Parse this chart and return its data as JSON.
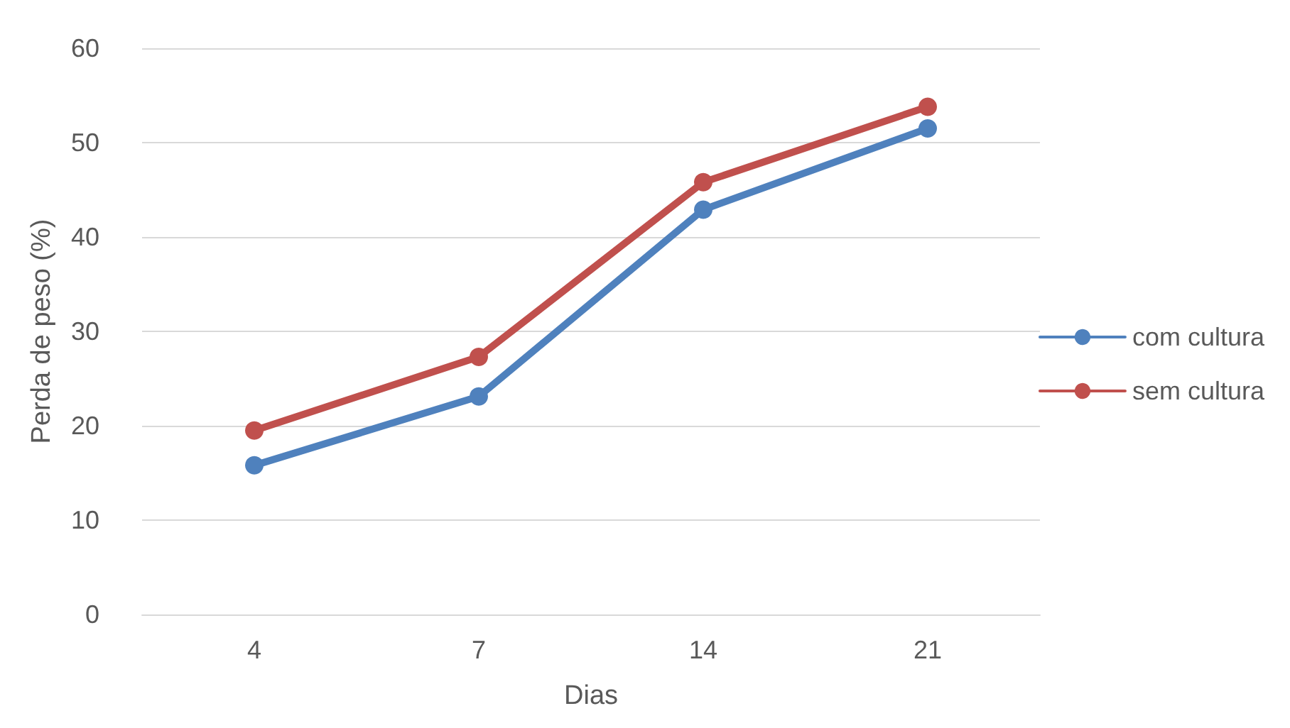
{
  "chart_data": {
    "type": "line",
    "xlabel": "Dias",
    "ylabel": "Perda de peso (%)",
    "categories": [
      "4",
      "7",
      "14",
      "21"
    ],
    "series": [
      {
        "name": "com cultura",
        "color": "#4f81bd",
        "values": [
          15.8,
          23.1,
          42.9,
          51.5
        ]
      },
      {
        "name": "sem cultura",
        "color": "#c0504d",
        "values": [
          19.5,
          27.3,
          45.8,
          53.8
        ]
      }
    ],
    "ylim": [
      0,
      60
    ],
    "yticks": [
      0,
      10,
      20,
      30,
      40,
      50,
      60
    ],
    "grid": "y",
    "legend": "right",
    "marker": "circle",
    "line_style": "solid"
  }
}
